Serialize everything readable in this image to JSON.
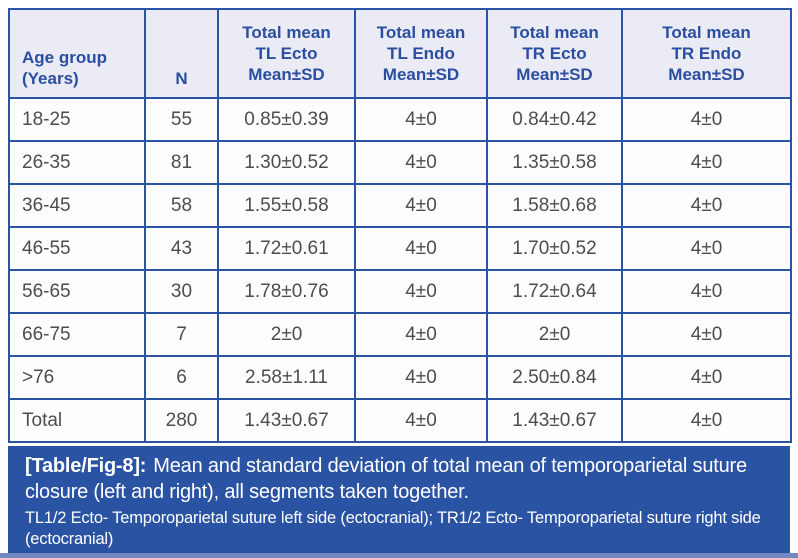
{
  "colors": {
    "border_blue": "#2b53a3",
    "header_bg": "#eaebf4",
    "header_text": "#2b4ea1",
    "data_text": "#4d4d4f",
    "caption_bg": "#2b53a3",
    "caption_text": "#ffffff",
    "bottom_strip": "#7289c0"
  },
  "table": {
    "columns": [
      "Age group\n(Years)",
      "N",
      "Total mean\nTL Ecto\nMean±SD",
      "Total mean\nTL Endo\nMean±SD",
      "Total mean\nTR Ecto\nMean±SD",
      "Total mean\nTR Endo\nMean±SD"
    ],
    "rows": [
      [
        "18-25",
        "55",
        "0.85±0.39",
        "4±0",
        "0.84±0.42",
        "4±0"
      ],
      [
        "26-35",
        "81",
        "1.30±0.52",
        "4±0",
        "1.35±0.58",
        "4±0"
      ],
      [
        "36-45",
        "58",
        "1.55±0.58",
        "4±0",
        "1.58±0.68",
        "4±0"
      ],
      [
        "46-55",
        "43",
        "1.72±0.61",
        "4±0",
        "1.70±0.52",
        "4±0"
      ],
      [
        "56-65",
        "30",
        "1.78±0.76",
        "4±0",
        "1.72±0.64",
        "4±0"
      ],
      [
        "66-75",
        "7",
        "2±0",
        "4±0",
        "2±0",
        "4±0"
      ],
      [
        ">76",
        "6",
        "2.58±1.11",
        "4±0",
        "2.50±0.84",
        "4±0"
      ],
      [
        "Total",
        "280",
        "1.43±0.67",
        "4±0",
        "1.43±0.67",
        "4±0"
      ]
    ]
  },
  "caption": {
    "label": "[Table/Fig-8]:",
    "text": "Mean and standard deviation of total mean of temporoparietal suture closure (left and right), all segments taken together.",
    "note": "TL1/2 Ecto- Temporoparietal suture left side (ectocranial); TR1/2 Ecto- Temporoparietal suture right side (ectocranial)"
  }
}
